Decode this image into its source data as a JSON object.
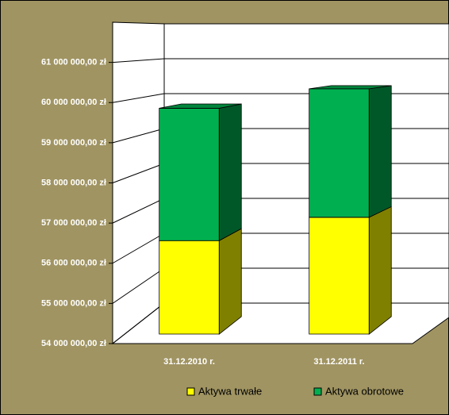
{
  "chart_data": {
    "type": "bar3d_stacked",
    "categories": [
      "31.12.2010 r.",
      "31.12.2011 r."
    ],
    "series": [
      {
        "name": "Aktywa trwałe",
        "color": "#ffff00",
        "values": [
          56400000,
          57000000
        ]
      },
      {
        "name": "Aktywa obrotowe",
        "color": "#00b050",
        "values": [
          3400000,
          3300000
        ]
      }
    ],
    "ylim": [
      54000000,
      62000000
    ],
    "yticks": [
      {
        "value": 54000000,
        "label": "54 000 000,00 zł"
      },
      {
        "value": 55000000,
        "label": "55 000 000,00 zł"
      },
      {
        "value": 56000000,
        "label": "56 000 000,00 zł"
      },
      {
        "value": 57000000,
        "label": "57 000 000,00 zł"
      },
      {
        "value": 58000000,
        "label": "58 000 000,00 zł"
      },
      {
        "value": 59000000,
        "label": "59 000 000,00 zł"
      },
      {
        "value": 60000000,
        "label": "60 000 000,00 zł"
      },
      {
        "value": 61000000,
        "label": "61 000 000,00 zł"
      }
    ],
    "grid": true,
    "legend": "bottom"
  }
}
